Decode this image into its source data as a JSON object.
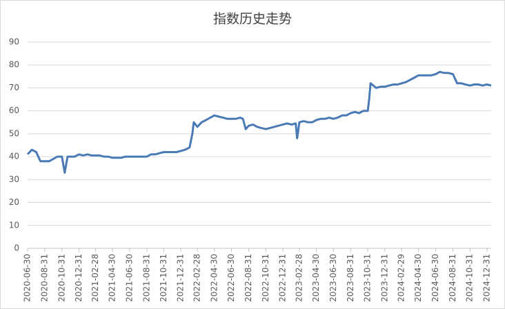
{
  "chart_data": {
    "type": "line",
    "title": "指数历史走势",
    "x": [
      "2020-06-30",
      "2020-07-15",
      "2020-07-31",
      "2020-08-15",
      "2020-08-31",
      "2020-09-15",
      "2020-09-30",
      "2020-10-15",
      "2020-10-31",
      "2020-11-10",
      "2020-11-20",
      "2020-11-30",
      "2020-12-15",
      "2020-12-31",
      "2021-01-15",
      "2021-01-31",
      "2021-02-15",
      "2021-02-28",
      "2021-03-15",
      "2021-03-31",
      "2021-04-15",
      "2021-04-30",
      "2021-05-15",
      "2021-05-31",
      "2021-06-15",
      "2021-06-30",
      "2021-07-15",
      "2021-07-31",
      "2021-08-15",
      "2021-08-31",
      "2021-09-15",
      "2021-09-30",
      "2021-10-15",
      "2021-10-31",
      "2021-11-15",
      "2021-11-30",
      "2021-12-15",
      "2021-12-31",
      "2022-01-15",
      "2022-01-31",
      "2022-02-10",
      "2022-02-15",
      "2022-02-28",
      "2022-03-15",
      "2022-03-31",
      "2022-04-15",
      "2022-04-30",
      "2022-05-15",
      "2022-05-31",
      "2022-06-15",
      "2022-06-30",
      "2022-07-15",
      "2022-07-31",
      "2022-08-10",
      "2022-08-20",
      "2022-08-31",
      "2022-09-15",
      "2022-09-30",
      "2022-10-15",
      "2022-10-31",
      "2022-11-15",
      "2022-11-30",
      "2022-12-15",
      "2022-12-31",
      "2023-01-15",
      "2023-01-31",
      "2023-02-15",
      "2023-02-20",
      "2023-02-28",
      "2023-03-15",
      "2023-03-31",
      "2023-04-15",
      "2023-04-30",
      "2023-05-15",
      "2023-05-31",
      "2023-06-15",
      "2023-06-30",
      "2023-07-15",
      "2023-07-31",
      "2023-08-15",
      "2023-08-31",
      "2023-09-15",
      "2023-09-30",
      "2023-10-15",
      "2023-10-31",
      "2023-11-05",
      "2023-11-10",
      "2023-11-20",
      "2023-11-30",
      "2023-12-15",
      "2023-12-31",
      "2024-01-15",
      "2024-01-31",
      "2024-02-15",
      "2024-02-29",
      "2024-03-15",
      "2024-03-31",
      "2024-04-15",
      "2024-04-30",
      "2024-05-15",
      "2024-05-31",
      "2024-06-15",
      "2024-06-30",
      "2024-07-15",
      "2024-07-31",
      "2024-08-15",
      "2024-08-31",
      "2024-09-15",
      "2024-09-30",
      "2024-10-15",
      "2024-10-31",
      "2024-11-15",
      "2024-11-30",
      "2024-12-15",
      "2024-12-31",
      "2025-01-15"
    ],
    "values": [
      41,
      43,
      42,
      38,
      38,
      38,
      39,
      40,
      40,
      33,
      40,
      40,
      40,
      41,
      40.5,
      41,
      40.5,
      40.5,
      40.5,
      40,
      40,
      39.5,
      39.5,
      39.5,
      40,
      40,
      40,
      40,
      40,
      40,
      41,
      41,
      41.5,
      42,
      42,
      42,
      42,
      42.5,
      43,
      44,
      50,
      55,
      53,
      55,
      56,
      57,
      58,
      57.5,
      57,
      56.5,
      56.5,
      56.5,
      57,
      56.5,
      52,
      53.5,
      54,
      53,
      52.5,
      52,
      52.5,
      53,
      53.5,
      54,
      54.5,
      54,
      54.5,
      48,
      55,
      55.5,
      55,
      55,
      56,
      56.5,
      56.5,
      57,
      56.5,
      57,
      58,
      58,
      59,
      59.5,
      59,
      60,
      60,
      65,
      72,
      71,
      70,
      70.5,
      70.5,
      71,
      71.5,
      71.5,
      72,
      72.5,
      73.5,
      74.5,
      75.5,
      75.5,
      75.5,
      75.5,
      76,
      77,
      76.5,
      76.5,
      76,
      72,
      72,
      71.5,
      71,
      71.5,
      71.5,
      71,
      71.5,
      71
    ],
    "color": "#4a7ab5",
    "ylim": [
      0,
      90
    ],
    "yticks": [
      0,
      10,
      20,
      30,
      40,
      50,
      60,
      70,
      80,
      90
    ],
    "xticks": [
      "2020-06-30",
      "2020-08-31",
      "2020-10-31",
      "2020-12-31",
      "2021-02-28",
      "2021-04-30",
      "2021-06-30",
      "2021-08-31",
      "2021-10-31",
      "2021-12-31",
      "2022-02-28",
      "2022-04-30",
      "2022-06-30",
      "2022-08-31",
      "2022-10-31",
      "2022-12-31",
      "2023-02-28",
      "2023-04-30",
      "2023-06-30",
      "2023-08-31",
      "2023-10-31",
      "2023-12-31",
      "2024-02-29",
      "2024-04-30",
      "2024-06-30",
      "2024-08-31",
      "2024-10-31",
      "2024-12-31"
    ],
    "grid": true
  }
}
